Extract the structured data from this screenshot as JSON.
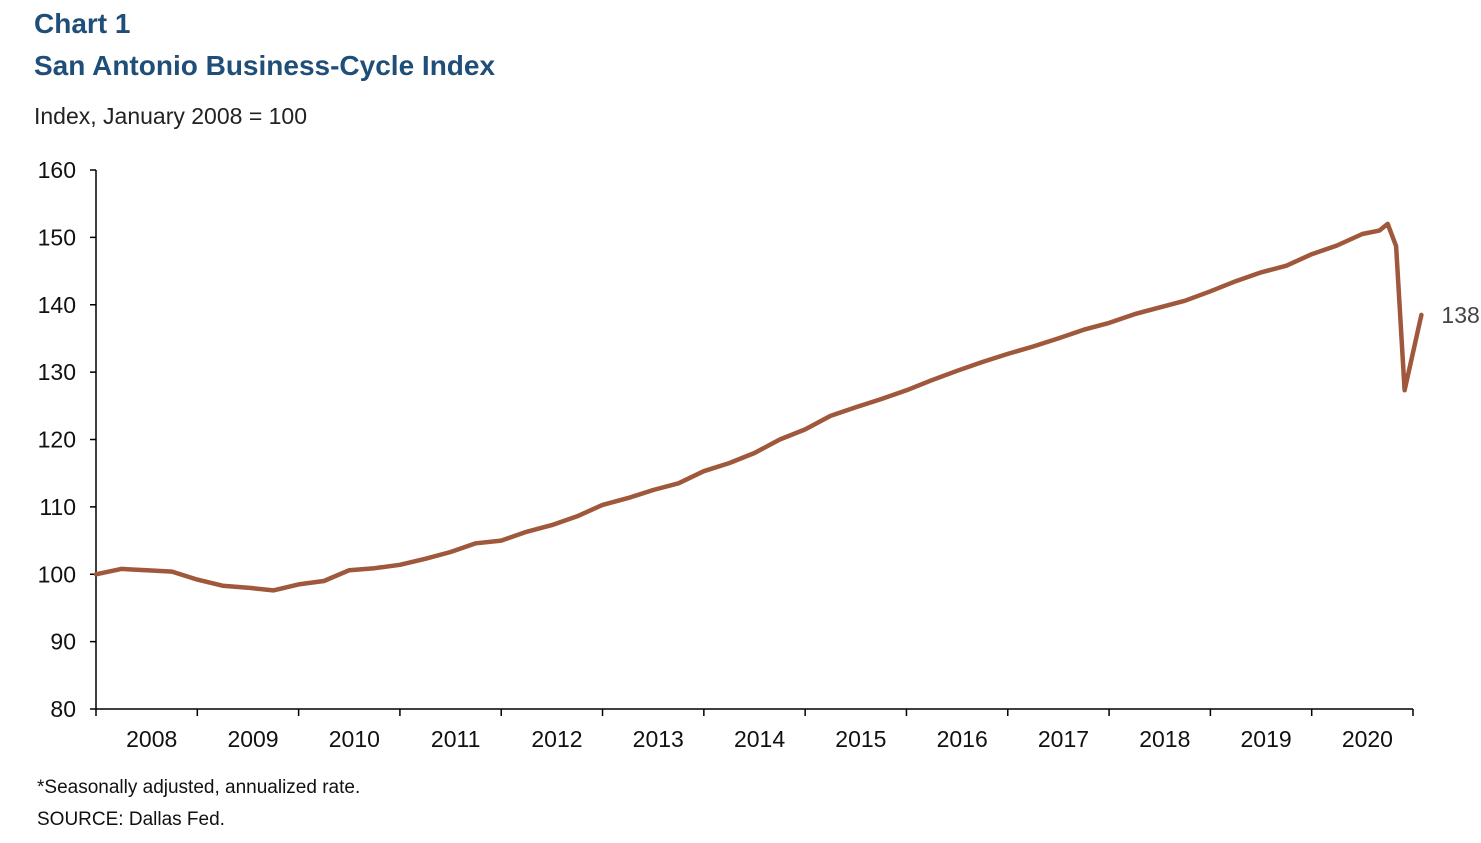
{
  "header": {
    "chart_label": "Chart 1",
    "title": "San Antonio Business-Cycle Index",
    "subtitle": "Index, January 2008 = 100"
  },
  "notes": {
    "note": "*Seasonally adjusted, annualized rate.",
    "source": "SOURCE: Dallas Fed."
  },
  "colors": {
    "series": "#a0583c",
    "title": "#1f4e79",
    "axis": "#000000"
  },
  "chart_data": {
    "type": "line",
    "title": "San Antonio Business-Cycle Index",
    "ylabel": "Index, January 2008 = 100",
    "xlabel": "",
    "ylim": [
      80,
      160
    ],
    "yticks": [
      80,
      90,
      100,
      110,
      120,
      130,
      140,
      150,
      160
    ],
    "xlim": [
      2008.0,
      2021.0
    ],
    "xtick_labels": [
      "2008",
      "2009",
      "2010",
      "2011",
      "2012",
      "2013",
      "2014",
      "2015",
      "2016",
      "2017",
      "2018",
      "2019",
      "2020"
    ],
    "grid": false,
    "legend": "none",
    "series": [
      {
        "color": "#a0583c",
        "points": [
          [
            2008.0,
            100.0
          ],
          [
            2008.25,
            100.8
          ],
          [
            2008.5,
            100.6
          ],
          [
            2008.75,
            100.4
          ],
          [
            2009.0,
            99.2
          ],
          [
            2009.25,
            98.3
          ],
          [
            2009.5,
            98.0
          ],
          [
            2009.75,
            97.6
          ],
          [
            2010.0,
            98.5
          ],
          [
            2010.25,
            99.0
          ],
          [
            2010.5,
            100.6
          ],
          [
            2010.75,
            100.9
          ],
          [
            2011.0,
            101.4
          ],
          [
            2011.25,
            102.3
          ],
          [
            2011.5,
            103.3
          ],
          [
            2011.75,
            104.6
          ],
          [
            2012.0,
            105.0
          ],
          [
            2012.25,
            106.3
          ],
          [
            2012.5,
            107.3
          ],
          [
            2012.75,
            108.6
          ],
          [
            2013.0,
            110.3
          ],
          [
            2013.25,
            111.3
          ],
          [
            2013.5,
            112.5
          ],
          [
            2013.75,
            113.5
          ],
          [
            2014.0,
            115.3
          ],
          [
            2014.25,
            116.5
          ],
          [
            2014.5,
            118.0
          ],
          [
            2014.75,
            120.0
          ],
          [
            2015.0,
            121.5
          ],
          [
            2015.25,
            123.5
          ],
          [
            2015.5,
            124.8
          ],
          [
            2015.75,
            126.0
          ],
          [
            2016.0,
            127.3
          ],
          [
            2016.25,
            128.8
          ],
          [
            2016.5,
            130.2
          ],
          [
            2016.75,
            131.5
          ],
          [
            2017.0,
            132.7
          ],
          [
            2017.25,
            133.8
          ],
          [
            2017.5,
            135.0
          ],
          [
            2017.75,
            136.3
          ],
          [
            2018.0,
            137.3
          ],
          [
            2018.25,
            138.6
          ],
          [
            2018.5,
            139.6
          ],
          [
            2018.75,
            140.6
          ],
          [
            2019.0,
            142.0
          ],
          [
            2019.25,
            143.5
          ],
          [
            2019.5,
            144.8
          ],
          [
            2019.75,
            145.8
          ],
          [
            2020.0,
            147.5
          ],
          [
            2020.25,
            148.8
          ],
          [
            2020.5,
            150.5
          ],
          [
            2020.667,
            151.0
          ],
          [
            2020.75,
            152.0
          ],
          [
            2020.833,
            148.7
          ],
          [
            2020.917,
            127.3
          ],
          [
            2021.083,
            138.5
          ]
        ]
      }
    ],
    "annotations": [
      {
        "label": "138.5",
        "x": 2021.083,
        "y": 138.5
      }
    ]
  }
}
